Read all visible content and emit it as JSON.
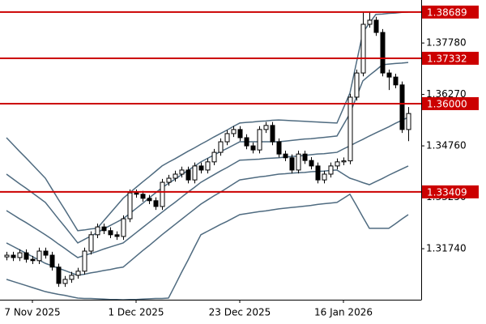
{
  "chart_data": {
    "type": "candlestick",
    "categories": [
      null,
      null,
      null,
      null,
      "7 Nov 2025",
      null,
      null,
      null,
      null,
      null,
      null,
      null,
      null,
      null,
      null,
      null,
      null,
      null,
      null,
      null,
      "1 Dec 2025",
      null,
      null,
      null,
      null,
      null,
      null,
      null,
      null,
      null,
      null,
      null,
      null,
      null,
      null,
      null,
      "23 Dec 2025",
      null,
      null,
      null,
      null,
      null,
      null,
      null,
      null,
      null,
      null,
      null,
      null,
      null,
      null,
      null,
      "16 Jan 2026",
      null,
      null,
      null,
      null,
      null,
      null,
      null,
      null,
      null,
      null
    ],
    "open": [
      1.315,
      1.3155,
      1.3148,
      1.3162,
      1.3143,
      1.3139,
      1.3167,
      1.3155,
      1.312,
      1.3072,
      1.3084,
      1.3096,
      1.3108,
      1.3167,
      1.3215,
      1.3238,
      1.3227,
      1.3215,
      1.321,
      1.3262,
      1.3338,
      1.3334,
      1.3322,
      1.3315,
      1.3298,
      1.3369,
      1.3381,
      1.3393,
      1.3405,
      1.3376,
      1.3417,
      1.3405,
      1.3429,
      1.3457,
      1.3488,
      1.3512,
      1.3524,
      1.35,
      1.3476,
      1.3464,
      1.3524,
      1.3536,
      1.3488,
      1.3452,
      1.3441,
      1.3405,
      1.3452,
      1.3433,
      1.3417,
      1.3376,
      1.3393,
      1.3417,
      1.3429,
      1.3432,
      1.3619,
      1.369,
      1.3833,
      1.3845,
      1.3809,
      1.369,
      1.3678,
      1.3655,
      1.3524
    ],
    "high": [
      1.3165,
      1.3165,
      1.3172,
      1.3172,
      1.3153,
      1.3177,
      1.3177,
      1.3165,
      1.313,
      1.3094,
      1.3106,
      1.3118,
      1.3177,
      1.3225,
      1.3248,
      1.3248,
      1.3237,
      1.3225,
      1.3272,
      1.3348,
      1.3348,
      1.3344,
      1.3332,
      1.3325,
      1.3379,
      1.3391,
      1.3403,
      1.3415,
      1.3415,
      1.3427,
      1.3427,
      1.3439,
      1.3467,
      1.3498,
      1.3522,
      1.3534,
      1.3534,
      1.351,
      1.3486,
      1.3534,
      1.3546,
      1.3546,
      1.3498,
      1.3462,
      1.3451,
      1.3462,
      1.3462,
      1.3443,
      1.3427,
      1.3403,
      1.3427,
      1.3439,
      1.3442,
      1.3629,
      1.37,
      1.3869,
      1.3869,
      1.3855,
      1.3819,
      1.37,
      1.3688,
      1.3665,
      1.359
    ],
    "low": [
      1.314,
      1.3138,
      1.3138,
      1.3133,
      1.3129,
      1.3129,
      1.3145,
      1.311,
      1.3062,
      1.3062,
      1.3074,
      1.3086,
      1.3098,
      1.3157,
      1.3205,
      1.3217,
      1.3205,
      1.32,
      1.32,
      1.3252,
      1.3324,
      1.3312,
      1.3305,
      1.3288,
      1.3288,
      1.3359,
      1.3371,
      1.3383,
      1.3366,
      1.3366,
      1.3395,
      1.3395,
      1.3419,
      1.3447,
      1.3478,
      1.3502,
      1.349,
      1.3466,
      1.3454,
      1.3454,
      1.3514,
      1.3478,
      1.3442,
      1.3431,
      1.3395,
      1.3395,
      1.3423,
      1.3407,
      1.3366,
      1.3366,
      1.3383,
      1.3407,
      1.3419,
      1.3422,
      1.3609,
      1.368,
      1.3823,
      1.3799,
      1.368,
      1.364,
      1.3645,
      1.3514,
      1.349
    ],
    "close": [
      1.3155,
      1.3148,
      1.3162,
      1.3143,
      1.3139,
      1.3167,
      1.3155,
      1.312,
      1.3072,
      1.3084,
      1.3096,
      1.3108,
      1.3167,
      1.3215,
      1.3238,
      1.3227,
      1.3215,
      1.321,
      1.3262,
      1.3338,
      1.3334,
      1.3322,
      1.3315,
      1.3298,
      1.3369,
      1.3381,
      1.3393,
      1.3405,
      1.3376,
      1.3417,
      1.3405,
      1.3429,
      1.3457,
      1.3488,
      1.3512,
      1.3524,
      1.35,
      1.3476,
      1.3464,
      1.3524,
      1.3536,
      1.3488,
      1.3452,
      1.3441,
      1.3405,
      1.3452,
      1.3433,
      1.3417,
      1.3376,
      1.3393,
      1.3417,
      1.3429,
      1.3432,
      1.3619,
      1.369,
      1.3833,
      1.3845,
      1.3809,
      1.369,
      1.3678,
      1.3655,
      1.3524,
      1.3571
    ],
    "bands": [
      {
        "values": [
          1.35,
          1.348,
          1.346,
          1.3441,
          1.3421,
          1.3401,
          1.3381,
          1.335,
          1.3319,
          1.3289,
          1.3258,
          1.3227,
          1.3229,
          1.3232,
          1.3234,
          1.3256,
          1.3278,
          1.33,
          1.3322,
          1.3338,
          1.3354,
          1.337,
          1.3385,
          1.3401,
          1.3417,
          1.3428,
          1.3438,
          1.3449,
          1.346,
          1.347,
          1.3481,
          1.3491,
          1.3502,
          1.3512,
          1.3522,
          1.3533,
          1.3543,
          1.3545,
          1.3546,
          1.3548,
          1.3549,
          1.3551,
          1.3552,
          1.3551,
          1.355,
          1.3549,
          1.3548,
          1.3547,
          1.3546,
          1.3545,
          1.3544,
          1.3543,
          1.3587,
          1.3631,
          1.372,
          1.3809,
          1.3836,
          1.3862,
          1.3863,
          1.3865,
          1.3866,
          1.3868,
          1.3869
        ]
      },
      {
        "values": [
          1.3393,
          1.3379,
          1.3365,
          1.3352,
          1.3338,
          1.3324,
          1.331,
          1.3286,
          1.3262,
          1.3239,
          1.3215,
          1.3191,
          1.3201,
          1.3211,
          1.3221,
          1.3232,
          1.3242,
          1.3252,
          1.3262,
          1.3277,
          1.3292,
          1.3307,
          1.3323,
          1.3338,
          1.3353,
          1.3366,
          1.3378,
          1.3391,
          1.3404,
          1.3416,
          1.3429,
          1.3439,
          1.3449,
          1.3459,
          1.3468,
          1.3478,
          1.3488,
          1.3488,
          1.3488,
          1.3488,
          1.3488,
          1.3488,
          1.3488,
          1.349,
          1.3492,
          1.3494,
          1.3496,
          1.3497,
          1.3499,
          1.3501,
          1.3503,
          1.3505,
          1.3538,
          1.3571,
          1.3619,
          1.3667,
          1.3683,
          1.3698,
          1.3714,
          1.3716,
          1.3718,
          1.3719,
          1.3721
        ]
      },
      {
        "values": [
          1.3286,
          1.3274,
          1.3262,
          1.3251,
          1.3239,
          1.3227,
          1.3215,
          1.3202,
          1.3188,
          1.3175,
          1.3161,
          1.3148,
          1.3154,
          1.316,
          1.3166,
          1.3173,
          1.3179,
          1.3185,
          1.3191,
          1.3206,
          1.3221,
          1.3236,
          1.3251,
          1.3266,
          1.3281,
          1.3296,
          1.331,
          1.3325,
          1.334,
          1.3354,
          1.3369,
          1.338,
          1.3391,
          1.3402,
          1.3412,
          1.3423,
          1.3434,
          1.3435,
          1.3436,
          1.3437,
          1.3439,
          1.344,
          1.3441,
          1.3443,
          1.3445,
          1.3446,
          1.3448,
          1.345,
          1.3452,
          1.3453,
          1.3455,
          1.3457,
          1.3467,
          1.3476,
          1.3486,
          1.3495,
          1.3505,
          1.3514,
          1.3523,
          1.3532,
          1.3542,
          1.3551,
          1.356
        ]
      },
      {
        "values": [
          1.3191,
          1.3181,
          1.3171,
          1.3161,
          1.3151,
          1.3141,
          1.3131,
          1.3124,
          1.3117,
          1.311,
          1.3103,
          1.3096,
          1.3099,
          1.3103,
          1.3106,
          1.311,
          1.3113,
          1.3117,
          1.312,
          1.3136,
          1.3152,
          1.3168,
          1.3183,
          1.3199,
          1.3215,
          1.323,
          1.3245,
          1.326,
          1.3275,
          1.329,
          1.3305,
          1.3317,
          1.3329,
          1.334,
          1.3352,
          1.3364,
          1.3376,
          1.3379,
          1.3382,
          1.3385,
          1.3387,
          1.339,
          1.3393,
          1.3394,
          1.3396,
          1.3397,
          1.3398,
          1.34,
          1.3401,
          1.3402,
          1.3404,
          1.3405,
          1.3393,
          1.3381,
          1.3375,
          1.3368,
          1.3362,
          1.3371,
          1.338,
          1.339,
          1.3399,
          1.3408,
          1.3417
        ]
      },
      {
        "values": [
          1.3084,
          1.3078,
          1.3072,
          1.3066,
          1.306,
          1.3054,
          1.3048,
          1.3044,
          1.304,
          1.3037,
          1.3033,
          1.3029,
          1.3028,
          1.3028,
          1.3027,
          1.3026,
          1.3025,
          1.3025,
          1.3024,
          1.3025,
          1.3025,
          1.3026,
          1.3027,
          1.3028,
          1.3028,
          1.3029,
          1.3066,
          1.3104,
          1.314,
          1.3178,
          1.3215,
          1.3225,
          1.3235,
          1.3245,
          1.3254,
          1.3264,
          1.3274,
          1.3277,
          1.328,
          1.3283,
          1.3285,
          1.3288,
          1.3291,
          1.3293,
          1.3295,
          1.3297,
          1.3299,
          1.3301,
          1.3304,
          1.3306,
          1.3308,
          1.331,
          1.3322,
          1.3334,
          1.3301,
          1.3267,
          1.3234,
          1.3234,
          1.3234,
          1.3234,
          1.3247,
          1.3261,
          1.3274
        ]
      }
    ],
    "levels": [
      1.38689,
      1.37332,
      {
        "value": 1.36,
        "label": "1.36000"
      },
      1.33409
    ],
    "ylim": [
      1.30243,
      1.39043
    ],
    "yticks": [
      {
        "value": 1.3778,
        "label": "1.37780"
      },
      {
        "value": 1.3627,
        "label": "1.36270"
      },
      {
        "value": 1.3476,
        "label": "1.34760"
      },
      {
        "value": 1.3325,
        "label": "1.33250"
      },
      {
        "value": 1.3174,
        "label": "1.31740"
      }
    ],
    "colors": {
      "bull": "#ffffff",
      "bear": "#000000",
      "wick": "#000000",
      "band": "#4f6b80",
      "level": "#cc0000"
    }
  }
}
